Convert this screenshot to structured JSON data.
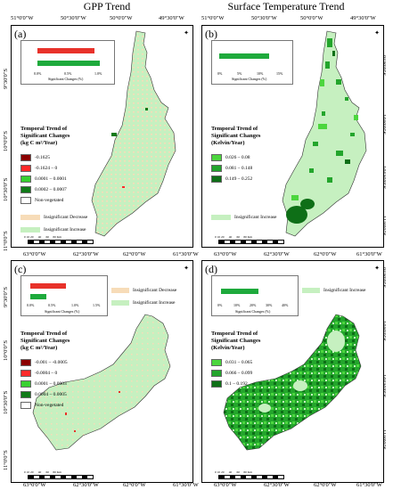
{
  "columns": {
    "left_title": "GPP Trend",
    "right_title": "Surface Temperature Trend"
  },
  "top_coords": {
    "x_ticks_left": [
      "51°0'0\"W",
      "50°30'0\"W",
      "50°0'0\"W",
      "49°30'0\"W"
    ],
    "x_ticks_right": [
      "51°0'0\"W",
      "50°30'0\"W",
      "50°0'0\"W",
      "49°30'0\"W"
    ],
    "y_ticks": [
      "9°30'0\"S",
      "10°0'0\"S",
      "10°30'0\"S",
      "11°0'0\"S"
    ]
  },
  "mid_coords": {
    "x_ticks": [
      "63°0'0\"W",
      "62°30'0\"W",
      "62°0'0\"W",
      "61°30'0\"W"
    ],
    "y_ticks": [
      "9°30'0\"S",
      "10°0'0\"S",
      "10°30'0\"S",
      "11°0'0\"S"
    ]
  },
  "bottom_coords": {
    "x_ticks": [
      "63°0'0\"W",
      "62°30'0\"W",
      "62°0'0\"W",
      "61°30'0\"W"
    ]
  },
  "panels": {
    "a": {
      "label": "(a)",
      "inset_ticks": [
        "0.0%",
        "0.5%",
        "1.0%"
      ],
      "inset_axis": "Significant Changes (%)",
      "bars": [
        {
          "color": "#e8322a",
          "value": 0.9
        },
        {
          "color": "#1eaa3c",
          "value": 1.0
        }
      ],
      "legend_title": [
        "Temporal Trend of",
        "Significant Changes",
        "(kg C m²/Year)"
      ],
      "legend": [
        {
          "label": "-0.1625",
          "color": "#8b0000"
        },
        {
          "label": "-0.1624 – 0",
          "color": "#ff2a2a"
        },
        {
          "label": "0.0001 – 0.0001",
          "color": "#38d030"
        },
        {
          "label": "0.0002 – 0.0007",
          "color": "#107a18"
        },
        {
          "label": "Non-vegetated",
          "color": "#ffffff"
        }
      ],
      "insig": [
        {
          "label": "Insignificant Decrease",
          "color": "#f7dcb8"
        },
        {
          "label": "Insignificant Increase",
          "color": "#c6f0c0"
        }
      ],
      "scale": [
        "0",
        "10",
        "20",
        "40",
        "60",
        "80",
        "Km"
      ]
    },
    "b": {
      "label": "(b)",
      "inset_ticks": [
        "0%",
        "5%",
        "10%",
        "15%"
      ],
      "inset_axis": "Significant Changes (%)",
      "bars": [
        {
          "color": "#1eaa3c",
          "value": 0.78
        }
      ],
      "legend_title": [
        "Temporal Trend of",
        "Significant Changes",
        "(Kelvin/Year)"
      ],
      "legend": [
        {
          "label": "0.026 – 0.08",
          "color": "#4cd63e"
        },
        {
          "label": "0.081 – 0.148",
          "color": "#23a52c"
        },
        {
          "label": "0.149 – 0.252",
          "color": "#0e6f17"
        }
      ],
      "insig": [
        {
          "label": "Insignificant Increase",
          "color": "#c6f0c0"
        }
      ],
      "scale": [
        "0",
        "10",
        "20",
        "40",
        "60",
        "80",
        "Km"
      ]
    },
    "c": {
      "label": "(c)",
      "inset_ticks": [
        "0.0%",
        "0.5%",
        "1.0%",
        "1.5%"
      ],
      "inset_axis": "Significant Changes (%)",
      "bars": [
        {
          "color": "#e8322a",
          "value": 0.55
        },
        {
          "color": "#1eaa3c",
          "value": 0.22
        }
      ],
      "legend_title": [
        "Temporal Trend of",
        "Significant Changes",
        "(kg C m²/Year)"
      ],
      "legend": [
        {
          "label": "-0.001 – -0.0005",
          "color": "#8b0000"
        },
        {
          "label": "-0.0004 – 0",
          "color": "#ff2a2a"
        },
        {
          "label": "0.0001 – 0.0003",
          "color": "#38d030"
        },
        {
          "label": "0.0004 – 0.0005",
          "color": "#107a18"
        },
        {
          "label": "Non-vegetated",
          "color": "#ffffff"
        }
      ],
      "insig": [
        {
          "label": "Insignificant Decrease",
          "color": "#f7dcb8"
        },
        {
          "label": "Insignificant Increase",
          "color": "#c6f0c0"
        }
      ],
      "scale": [
        "0",
        "10",
        "20",
        "40",
        "60",
        "80",
        "Km"
      ]
    },
    "d": {
      "label": "(d)",
      "inset_ticks": [
        "0%",
        "10%",
        "20%",
        "30%",
        "40%"
      ],
      "inset_axis": "Significant Changes (%)",
      "bars": [
        {
          "color": "#1eaa3c",
          "value": 0.58
        }
      ],
      "legend_title": [
        "Temporal Trend of",
        "Significant Changes",
        "(Kelvin/Year)"
      ],
      "legend": [
        {
          "label": "0.031 – 0.065",
          "color": "#4cd63e"
        },
        {
          "label": "0.066 – 0.099",
          "color": "#23a52c"
        },
        {
          "label": "0.1 – 0.192",
          "color": "#0e6f17"
        }
      ],
      "insig": [
        {
          "label": "Insignificant Increase",
          "color": "#c6f0c0"
        }
      ],
      "scale": [
        "0",
        "10",
        "20",
        "40",
        "60",
        "80",
        "Km"
      ]
    }
  },
  "north_label": "N"
}
